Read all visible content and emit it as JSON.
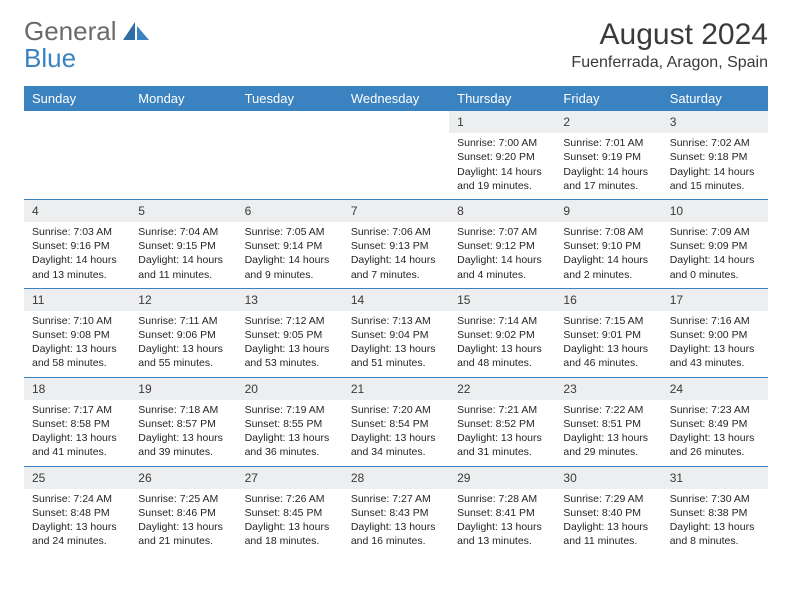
{
  "logo": {
    "general": "General",
    "blue": "Blue"
  },
  "title": "August 2024",
  "location": "Fuenferrada, Aragon, Spain",
  "colors": {
    "accent": "#3b83c0",
    "header_bg": "#3b83c0",
    "header_text": "#ffffff",
    "daynum_bg": "#eceeef",
    "text": "#252525",
    "logo_gray": "#6a6a6a"
  },
  "day_headers": [
    "Sunday",
    "Monday",
    "Tuesday",
    "Wednesday",
    "Thursday",
    "Friday",
    "Saturday"
  ],
  "weeks": [
    [
      null,
      null,
      null,
      null,
      {
        "n": "1",
        "sr": "7:00 AM",
        "ss": "9:20 PM",
        "dl": "14 hours and 19 minutes."
      },
      {
        "n": "2",
        "sr": "7:01 AM",
        "ss": "9:19 PM",
        "dl": "14 hours and 17 minutes."
      },
      {
        "n": "3",
        "sr": "7:02 AM",
        "ss": "9:18 PM",
        "dl": "14 hours and 15 minutes."
      }
    ],
    [
      {
        "n": "4",
        "sr": "7:03 AM",
        "ss": "9:16 PM",
        "dl": "14 hours and 13 minutes."
      },
      {
        "n": "5",
        "sr": "7:04 AM",
        "ss": "9:15 PM",
        "dl": "14 hours and 11 minutes."
      },
      {
        "n": "6",
        "sr": "7:05 AM",
        "ss": "9:14 PM",
        "dl": "14 hours and 9 minutes."
      },
      {
        "n": "7",
        "sr": "7:06 AM",
        "ss": "9:13 PM",
        "dl": "14 hours and 7 minutes."
      },
      {
        "n": "8",
        "sr": "7:07 AM",
        "ss": "9:12 PM",
        "dl": "14 hours and 4 minutes."
      },
      {
        "n": "9",
        "sr": "7:08 AM",
        "ss": "9:10 PM",
        "dl": "14 hours and 2 minutes."
      },
      {
        "n": "10",
        "sr": "7:09 AM",
        "ss": "9:09 PM",
        "dl": "14 hours and 0 minutes."
      }
    ],
    [
      {
        "n": "11",
        "sr": "7:10 AM",
        "ss": "9:08 PM",
        "dl": "13 hours and 58 minutes."
      },
      {
        "n": "12",
        "sr": "7:11 AM",
        "ss": "9:06 PM",
        "dl": "13 hours and 55 minutes."
      },
      {
        "n": "13",
        "sr": "7:12 AM",
        "ss": "9:05 PM",
        "dl": "13 hours and 53 minutes."
      },
      {
        "n": "14",
        "sr": "7:13 AM",
        "ss": "9:04 PM",
        "dl": "13 hours and 51 minutes."
      },
      {
        "n": "15",
        "sr": "7:14 AM",
        "ss": "9:02 PM",
        "dl": "13 hours and 48 minutes."
      },
      {
        "n": "16",
        "sr": "7:15 AM",
        "ss": "9:01 PM",
        "dl": "13 hours and 46 minutes."
      },
      {
        "n": "17",
        "sr": "7:16 AM",
        "ss": "9:00 PM",
        "dl": "13 hours and 43 minutes."
      }
    ],
    [
      {
        "n": "18",
        "sr": "7:17 AM",
        "ss": "8:58 PM",
        "dl": "13 hours and 41 minutes."
      },
      {
        "n": "19",
        "sr": "7:18 AM",
        "ss": "8:57 PM",
        "dl": "13 hours and 39 minutes."
      },
      {
        "n": "20",
        "sr": "7:19 AM",
        "ss": "8:55 PM",
        "dl": "13 hours and 36 minutes."
      },
      {
        "n": "21",
        "sr": "7:20 AM",
        "ss": "8:54 PM",
        "dl": "13 hours and 34 minutes."
      },
      {
        "n": "22",
        "sr": "7:21 AM",
        "ss": "8:52 PM",
        "dl": "13 hours and 31 minutes."
      },
      {
        "n": "23",
        "sr": "7:22 AM",
        "ss": "8:51 PM",
        "dl": "13 hours and 29 minutes."
      },
      {
        "n": "24",
        "sr": "7:23 AM",
        "ss": "8:49 PM",
        "dl": "13 hours and 26 minutes."
      }
    ],
    [
      {
        "n": "25",
        "sr": "7:24 AM",
        "ss": "8:48 PM",
        "dl": "13 hours and 24 minutes."
      },
      {
        "n": "26",
        "sr": "7:25 AM",
        "ss": "8:46 PM",
        "dl": "13 hours and 21 minutes."
      },
      {
        "n": "27",
        "sr": "7:26 AM",
        "ss": "8:45 PM",
        "dl": "13 hours and 18 minutes."
      },
      {
        "n": "28",
        "sr": "7:27 AM",
        "ss": "8:43 PM",
        "dl": "13 hours and 16 minutes."
      },
      {
        "n": "29",
        "sr": "7:28 AM",
        "ss": "8:41 PM",
        "dl": "13 hours and 13 minutes."
      },
      {
        "n": "30",
        "sr": "7:29 AM",
        "ss": "8:40 PM",
        "dl": "13 hours and 11 minutes."
      },
      {
        "n": "31",
        "sr": "7:30 AM",
        "ss": "8:38 PM",
        "dl": "13 hours and 8 minutes."
      }
    ]
  ],
  "labels": {
    "sunrise": "Sunrise:",
    "sunset": "Sunset:",
    "daylight": "Daylight:"
  }
}
